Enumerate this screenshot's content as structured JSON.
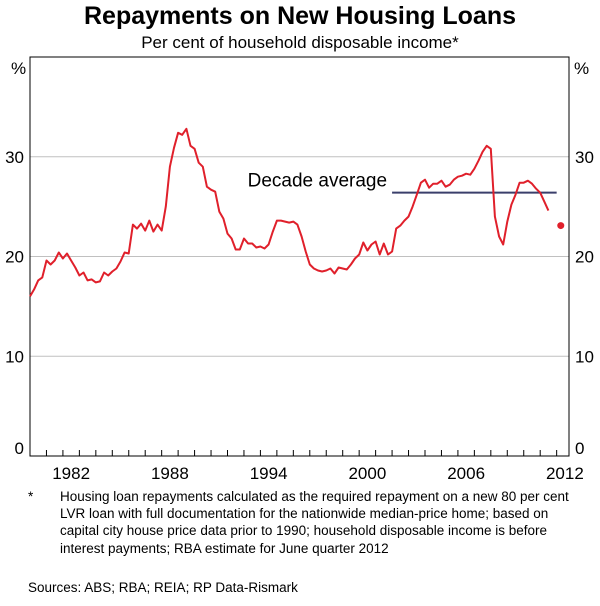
{
  "title": "Repayments on New Housing Loans",
  "subtitle": "Per cent of household disposable income*",
  "footnote": {
    "mark": "*",
    "text": "Housing loan repayments calculated as the required repayment on a new 80 per cent LVR loan with full documentation for the nationwide median-price home; based on capital city house price data prior to 1990; household disposable income is before interest payments; RBA estimate for June quarter 2012"
  },
  "sources": "Sources: ABS; RBA; REIA; RP Data-Rismark",
  "colors": {
    "series": "#e0202b",
    "average": "#3a3f6b",
    "grid": "#c0c0c0"
  },
  "chart_data": {
    "type": "line",
    "ylabel_left": "%",
    "ylabel_right": "%",
    "ylim": [
      0,
      40
    ],
    "xlim": [
      1980.0,
      2012.75
    ],
    "yticks": [
      0,
      10,
      20,
      30
    ],
    "xticks": [
      1982,
      1988,
      1994,
      2000,
      2006,
      2012
    ],
    "grid": true,
    "series": [
      {
        "values": [
          [
            1980.0,
            16.0
          ],
          [
            1980.25,
            16.7
          ],
          [
            1980.5,
            17.6
          ],
          [
            1980.75,
            17.9
          ],
          [
            1981.0,
            19.6
          ],
          [
            1981.25,
            19.2
          ],
          [
            1981.5,
            19.6
          ],
          [
            1981.75,
            20.4
          ],
          [
            1982.0,
            19.8
          ],
          [
            1982.25,
            20.3
          ],
          [
            1982.5,
            19.6
          ],
          [
            1982.75,
            18.9
          ],
          [
            1983.0,
            18.1
          ],
          [
            1983.25,
            18.4
          ],
          [
            1983.5,
            17.6
          ],
          [
            1983.75,
            17.7
          ],
          [
            1984.0,
            17.4
          ],
          [
            1984.25,
            17.5
          ],
          [
            1984.5,
            18.4
          ],
          [
            1984.75,
            18.1
          ],
          [
            1985.0,
            18.5
          ],
          [
            1985.25,
            18.8
          ],
          [
            1985.5,
            19.5
          ],
          [
            1985.75,
            20.4
          ],
          [
            1986.0,
            20.3
          ],
          [
            1986.25,
            23.2
          ],
          [
            1986.5,
            22.8
          ],
          [
            1986.75,
            23.3
          ],
          [
            1987.0,
            22.6
          ],
          [
            1987.25,
            23.6
          ],
          [
            1987.5,
            22.5
          ],
          [
            1987.75,
            23.2
          ],
          [
            1988.0,
            22.6
          ],
          [
            1988.25,
            25.0
          ],
          [
            1988.5,
            29.0
          ],
          [
            1988.75,
            30.9
          ],
          [
            1989.0,
            32.4
          ],
          [
            1989.25,
            32.2
          ],
          [
            1989.5,
            32.8
          ],
          [
            1989.75,
            31.1
          ],
          [
            1990.0,
            30.8
          ],
          [
            1990.25,
            29.4
          ],
          [
            1990.5,
            29.0
          ],
          [
            1990.75,
            27.0
          ],
          [
            1991.0,
            26.7
          ],
          [
            1991.25,
            26.5
          ],
          [
            1991.5,
            24.5
          ],
          [
            1991.75,
            23.8
          ],
          [
            1992.0,
            22.3
          ],
          [
            1992.25,
            21.8
          ],
          [
            1992.5,
            20.7
          ],
          [
            1992.75,
            20.7
          ],
          [
            1993.0,
            21.8
          ],
          [
            1993.25,
            21.3
          ],
          [
            1993.5,
            21.3
          ],
          [
            1993.75,
            20.9
          ],
          [
            1994.0,
            21.0
          ],
          [
            1994.25,
            20.8
          ],
          [
            1994.5,
            21.2
          ],
          [
            1994.75,
            22.5
          ],
          [
            1995.0,
            23.6
          ],
          [
            1995.25,
            23.6
          ],
          [
            1995.5,
            23.5
          ],
          [
            1995.75,
            23.4
          ],
          [
            1996.0,
            23.5
          ],
          [
            1996.25,
            23.2
          ],
          [
            1996.5,
            22.0
          ],
          [
            1996.75,
            20.5
          ],
          [
            1997.0,
            19.2
          ],
          [
            1997.25,
            18.8
          ],
          [
            1997.5,
            18.6
          ],
          [
            1997.75,
            18.5
          ],
          [
            1998.0,
            18.6
          ],
          [
            1998.25,
            18.8
          ],
          [
            1998.5,
            18.3
          ],
          [
            1998.75,
            18.9
          ],
          [
            1999.0,
            18.8
          ],
          [
            1999.25,
            18.7
          ],
          [
            1999.5,
            19.2
          ],
          [
            1999.75,
            19.8
          ],
          [
            2000.0,
            20.2
          ],
          [
            2000.25,
            21.4
          ],
          [
            2000.5,
            20.6
          ],
          [
            2000.75,
            21.2
          ],
          [
            2001.0,
            21.5
          ],
          [
            2001.25,
            20.2
          ],
          [
            2001.5,
            21.3
          ],
          [
            2001.75,
            20.2
          ],
          [
            2002.0,
            20.5
          ],
          [
            2002.25,
            22.8
          ],
          [
            2002.5,
            23.1
          ],
          [
            2002.75,
            23.6
          ],
          [
            2003.0,
            24.0
          ],
          [
            2003.25,
            25.0
          ],
          [
            2003.5,
            26.2
          ],
          [
            2003.75,
            27.4
          ],
          [
            2004.0,
            27.7
          ],
          [
            2004.25,
            26.9
          ],
          [
            2004.5,
            27.3
          ],
          [
            2004.75,
            27.3
          ],
          [
            2005.0,
            27.6
          ],
          [
            2005.25,
            27.0
          ],
          [
            2005.5,
            27.2
          ],
          [
            2005.75,
            27.7
          ],
          [
            2006.0,
            28.0
          ],
          [
            2006.25,
            28.1
          ],
          [
            2006.5,
            28.3
          ],
          [
            2006.75,
            28.2
          ],
          [
            2007.0,
            28.8
          ],
          [
            2007.25,
            29.6
          ],
          [
            2007.5,
            30.5
          ],
          [
            2007.75,
            31.1
          ],
          [
            2008.0,
            30.8
          ],
          [
            2008.25,
            24.0
          ],
          [
            2008.5,
            22.0
          ],
          [
            2008.75,
            21.2
          ],
          [
            2009.0,
            23.5
          ],
          [
            2009.25,
            25.2
          ],
          [
            2009.5,
            26.2
          ],
          [
            2009.75,
            27.4
          ],
          [
            2010.0,
            27.4
          ],
          [
            2010.25,
            27.6
          ],
          [
            2010.5,
            27.3
          ],
          [
            2010.75,
            26.8
          ],
          [
            2011.0,
            26.4
          ],
          [
            2011.25,
            25.5
          ],
          [
            2011.5,
            24.6
          ]
        ]
      }
    ],
    "estimate_point": [
      2012.25,
      23.1
    ],
    "average_line": {
      "label": "Decade average",
      "x": [
        2002.0,
        2012.0
      ],
      "y": 26.4
    }
  }
}
